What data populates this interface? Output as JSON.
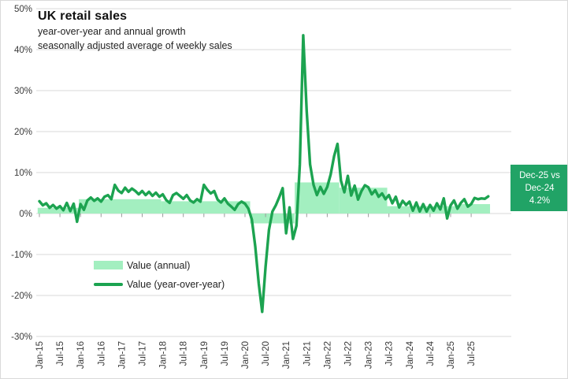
{
  "header": {
    "title": "UK retail sales",
    "subtitle_line1": "year-over-year and annual growth",
    "subtitle_line2": "seasonally adjusted average of weekly sales"
  },
  "legend": {
    "annual_label": "Value (annual)",
    "yoy_label": "Value (year-over-year)"
  },
  "annotation": {
    "line1": "Dec-25 vs",
    "line2": "Dec-24",
    "line3": "4.2%"
  },
  "colors": {
    "yoy_line": "#1CA350",
    "annual_fill": "#A3EFC0",
    "annotation_bg": "#21A366",
    "gridline": "#D9D9D9",
    "tick_mark": "#9B9B9B",
    "axis_text": "#3A3A3A"
  },
  "chart_data": {
    "type": "line",
    "title": "UK retail sales",
    "subtitle": [
      "year-over-year and annual growth",
      "seasonally adjusted average of weekly sales"
    ],
    "ylabel": "",
    "xlabel": "",
    "ylim": [
      -30,
      50
    ],
    "y_unit": "percent",
    "grid": "horizontal",
    "legend_position": "inside-bottom-left",
    "y_tick_labels": [
      "50%",
      "40%",
      "30%",
      "20%",
      "10%",
      "0%",
      "-10%",
      "-20%",
      "-30%"
    ],
    "y_tick_values": [
      50,
      40,
      30,
      20,
      10,
      0,
      -10,
      -20,
      -30
    ],
    "x_tick_labels": [
      "Jan-15",
      "Jul-15",
      "Jan-16",
      "Jul-16",
      "Jan-17",
      "Jul-17",
      "Jan-18",
      "Jul-18",
      "Jan-19",
      "Jul-19",
      "Jan-20",
      "Jul-20",
      "Jan-21",
      "Jul-21",
      "Jan-22",
      "Jul-22",
      "Jan-23",
      "Jul-23",
      "Jan-24",
      "Jul-24",
      "Jan-25",
      "Jul-25"
    ],
    "x_start_month": "Jan-15",
    "x_end_month": "Dec-25",
    "series": [
      {
        "name": "Value (annual)",
        "type": "stepped_area",
        "segments": [
          {
            "start": "Jan-15",
            "end": "Dec-15",
            "value": 1.4
          },
          {
            "start": "Jan-16",
            "end": "Dec-17",
            "value": 3.5
          },
          {
            "start": "Jan-18",
            "end": "Feb-20",
            "value": 3.0
          },
          {
            "start": "Mar-20",
            "end": "Mar-21",
            "value": -2.4
          },
          {
            "start": "Apr-21",
            "end": "Apr-22",
            "value": 7.6
          },
          {
            "start": "May-22",
            "end": "Jun-23",
            "value": 6.3
          },
          {
            "start": "Jul-23",
            "end": "Mar-25",
            "value": 1.8
          },
          {
            "start": "Apr-25",
            "end": "Dec-25",
            "value": 2.3
          }
        ]
      },
      {
        "name": "Value (year-over-year)",
        "type": "line",
        "first_month": "Jan-15",
        "monthly_values": [
          3.0,
          2.0,
          2.5,
          1.4,
          2.1,
          1.2,
          1.8,
          0.8,
          2.6,
          0.6,
          2.4,
          -2.0,
          2.3,
          0.9,
          3.2,
          3.9,
          3.1,
          3.7,
          2.9,
          4.1,
          4.5,
          3.5,
          7.0,
          5.6,
          5.0,
          6.3,
          5.3,
          6.1,
          5.5,
          4.7,
          5.5,
          4.5,
          5.3,
          4.3,
          5.1,
          4.1,
          4.7,
          3.3,
          2.6,
          4.5,
          5.0,
          4.3,
          3.6,
          4.5,
          3.2,
          2.7,
          3.5,
          2.9,
          7.0,
          5.8,
          4.9,
          5.5,
          3.4,
          2.7,
          3.7,
          2.4,
          1.7,
          0.9,
          2.3,
          2.9,
          2.4,
          1.2,
          -1.5,
          -8.0,
          -17.0,
          -24.0,
          -13.0,
          -4.0,
          0.5,
          2.0,
          4.0,
          6.2,
          -4.8,
          1.5,
          -6.2,
          -3.0,
          12.0,
          43.5,
          25.0,
          12.0,
          7.0,
          4.5,
          6.5,
          4.8,
          6.5,
          9.5,
          14.0,
          17.0,
          8.0,
          5.2,
          9.2,
          4.4,
          6.8,
          3.4,
          5.5,
          6.9,
          6.4,
          4.7,
          5.7,
          4.1,
          4.9,
          3.5,
          4.5,
          2.5,
          4.1,
          1.5,
          3.1,
          2.1,
          2.9,
          0.7,
          2.7,
          0.5,
          2.3,
          0.5,
          2.1,
          0.7,
          2.5,
          1.0,
          3.7,
          -1.2,
          2.0,
          3.2,
          1.2,
          2.6,
          3.5,
          1.7,
          2.3,
          3.8,
          3.5,
          3.7,
          3.6,
          4.2
        ]
      }
    ],
    "annotation": {
      "text": [
        "Dec-25 vs",
        "Dec-24",
        "4.2%"
      ],
      "value": "4.2%",
      "position": "right-of-plot"
    }
  }
}
